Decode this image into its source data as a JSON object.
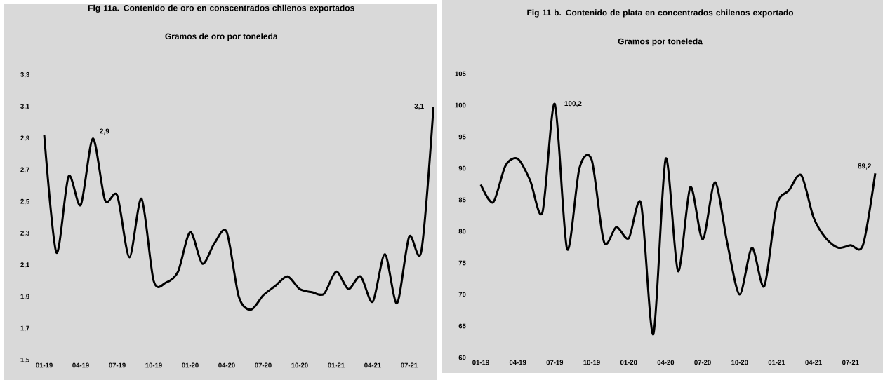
{
  "chart_data": [
    {
      "type": "line",
      "title": "Fig 11a. Contenido de oro en conscentrados chilenos exportados",
      "subtitle": "Gramos de oro por toneleda",
      "color": "#000000",
      "categories": [
        "01-19",
        null,
        null,
        "04-19",
        null,
        null,
        "07-19",
        null,
        null,
        "10-19",
        null,
        null,
        "01-20",
        null,
        null,
        "04-20",
        null,
        null,
        "07-20",
        null,
        null,
        "10-20",
        null,
        null,
        "01-21",
        null,
        null,
        "04-21",
        null,
        null,
        "07-21",
        null,
        null
      ],
      "values": [
        2.92,
        2.18,
        2.66,
        2.48,
        2.9,
        2.51,
        2.54,
        2.15,
        2.52,
        2.0,
        1.99,
        2.06,
        2.31,
        2.11,
        2.24,
        2.31,
        1.9,
        1.82,
        1.91,
        1.97,
        2.03,
        1.95,
        1.93,
        1.92,
        2.06,
        1.95,
        2.03,
        1.87,
        2.17,
        1.86,
        2.28,
        2.19,
        3.1
      ],
      "value_labels": [
        null,
        null,
        null,
        null,
        "2,9",
        null,
        null,
        null,
        null,
        null,
        null,
        null,
        null,
        null,
        null,
        null,
        null,
        null,
        null,
        null,
        null,
        null,
        null,
        null,
        null,
        null,
        null,
        null,
        null,
        null,
        null,
        null,
        "3,1"
      ],
      "ylim": [
        1.5,
        3.3
      ],
      "yticks": [
        {
          "value": 1.5,
          "label": "1,5"
        },
        {
          "value": 1.7,
          "label": "1,7"
        },
        {
          "value": 1.9,
          "label": "1,9"
        },
        {
          "value": 2.1,
          "label": "2,1"
        },
        {
          "value": 2.3,
          "label": "2,3"
        },
        {
          "value": 2.5,
          "label": "2,5"
        },
        {
          "value": 2.7,
          "label": "2,7"
        },
        {
          "value": 2.9,
          "label": "2,9"
        },
        {
          "value": 3.1,
          "label": "3,1"
        },
        {
          "value": 3.3,
          "label": "3,3"
        }
      ]
    },
    {
      "type": "line",
      "title": "Fig 11 b. Contenido de plata en concentrados chilenos exportado",
      "subtitle": "Gramos por toneleda",
      "color": "#000000",
      "categories": [
        "01-19",
        null,
        null,
        "04-19",
        null,
        null,
        "07-19",
        null,
        null,
        "10-19",
        null,
        null,
        "01-20",
        null,
        null,
        "04-20",
        null,
        null,
        "07-20",
        null,
        null,
        "10-20",
        null,
        null,
        "01-21",
        null,
        null,
        "04-21",
        null,
        null,
        "07-21",
        null,
        null
      ],
      "values": [
        87.4,
        84.6,
        90.4,
        91.5,
        88.1,
        83.0,
        100.2,
        77.2,
        90.0,
        91.3,
        78.3,
        80.7,
        78.9,
        84.4,
        63.7,
        91.5,
        73.7,
        87.0,
        78.7,
        87.8,
        78.1,
        70.0,
        77.4,
        71.3,
        84.1,
        86.5,
        88.9,
        82.2,
        78.9,
        77.4,
        77.8,
        77.8,
        89.2
      ],
      "value_labels": [
        null,
        null,
        null,
        null,
        null,
        null,
        "100,2",
        null,
        null,
        null,
        null,
        null,
        null,
        null,
        null,
        null,
        null,
        null,
        null,
        null,
        null,
        null,
        null,
        null,
        null,
        null,
        null,
        null,
        null,
        null,
        null,
        null,
        "89,2"
      ],
      "ylim": [
        60,
        105
      ],
      "yticks": [
        60,
        65,
        70,
        75,
        80,
        85,
        90,
        95,
        100,
        105
      ]
    }
  ]
}
